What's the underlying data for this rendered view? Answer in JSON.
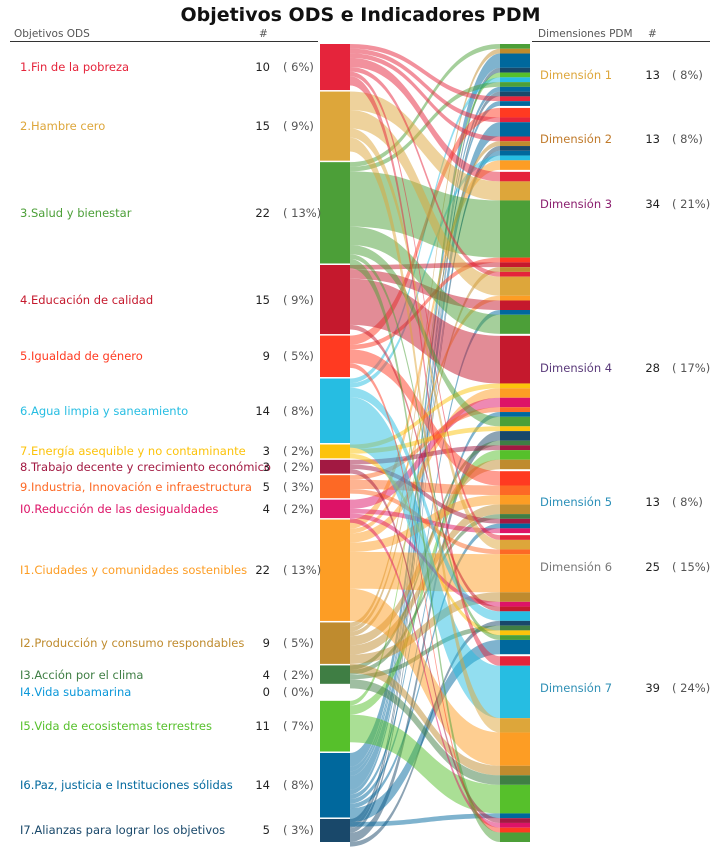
{
  "title": "Objetivos ODS e Indicadores PDM",
  "headers": {
    "left_label": "Objetivos ODS",
    "left_count": "#",
    "right_label": "Dimensiones PDM",
    "right_count": "#"
  },
  "chart_data": {
    "type": "sankey",
    "ods": [
      {
        "label": "1.Fin de la pobreza",
        "count": "10",
        "pct": "( 6%)",
        "value": 10,
        "color": "#E5243B"
      },
      {
        "label": "2.Hambre cero",
        "count": "15",
        "pct": "( 9%)",
        "value": 15,
        "color": "#DDA63A"
      },
      {
        "label": "3.Salud y bienestar",
        "count": "22",
        "pct": "( 13%)",
        "value": 22,
        "color": "#4C9F38"
      },
      {
        "label": "4.Educación de calidad",
        "count": "15",
        "pct": "( 9%)",
        "value": 15,
        "color": "#C5192D"
      },
      {
        "label": "5.Igualdad de género",
        "count": "9",
        "pct": "( 5%)",
        "value": 9,
        "color": "#FF3A21"
      },
      {
        "label": "6.Agua limpia y saneamiento",
        "count": "14",
        "pct": "( 8%)",
        "value": 14,
        "color": "#26BDE2"
      },
      {
        "label": "7.Energía asequible y no contaminante",
        "count": "3",
        "pct": "( 2%)",
        "value": 3,
        "color": "#FCC30B"
      },
      {
        "label": "8.Trabajo decente y crecimiento económico",
        "count": "3",
        "pct": "( 2%)",
        "value": 3,
        "color": "#A21942"
      },
      {
        "label": "9.Industria, Innovación e infraestructura",
        "count": "5",
        "pct": "( 3%)",
        "value": 5,
        "color": "#FD6925"
      },
      {
        "label": "I0.Reducción de las desigualdades",
        "count": "4",
        "pct": "( 2%)",
        "value": 4,
        "color": "#DD1367"
      },
      {
        "label": "I1.Ciudades y comunidades sostenibles",
        "count": "22",
        "pct": "( 13%)",
        "value": 22,
        "color": "#FD9D24"
      },
      {
        "label": "I2.Producción y consumo respondables",
        "count": "9",
        "pct": "( 5%)",
        "value": 9,
        "color": "#BF8B2E"
      },
      {
        "label": "I3.Acción por el clima",
        "count": "4",
        "pct": "( 2%)",
        "value": 4,
        "color": "#3F7E44"
      },
      {
        "label": "I4.Vida subamarina",
        "count": "0",
        "pct": "( 0%)",
        "value": 0,
        "color": "#0A97D9"
      },
      {
        "label": "I5.Vida de ecosistemas terrestres",
        "count": "11",
        "pct": "( 7%)",
        "value": 11,
        "color": "#56C02B"
      },
      {
        "label": "I6.Paz, justicia e Instituciones sólidas",
        "count": "14",
        "pct": "( 8%)",
        "value": 14,
        "color": "#00689D"
      },
      {
        "label": "I7.Alianzas para lograr los objetivos",
        "count": "5",
        "pct": "( 3%)",
        "value": 5,
        "color": "#19486A"
      }
    ],
    "dimensions": [
      {
        "label": "Dimensión 1",
        "count": "13",
        "pct": "( 8%)",
        "value": 13,
        "color": "#DDA63A"
      },
      {
        "label": "Dimensión 2",
        "count": "13",
        "pct": "( 8%)",
        "value": 13,
        "color": "#C07A2A"
      },
      {
        "label": "Dimensión 3",
        "count": "34",
        "pct": "( 21%)",
        "value": 34,
        "color": "#8B1E6E"
      },
      {
        "label": "Dimensión 4",
        "count": "28",
        "pct": "( 17%)",
        "value": 28,
        "color": "#5A3A7A"
      },
      {
        "label": "Dimensión 5",
        "count": "13",
        "pct": "( 8%)",
        "value": 13,
        "color": "#2A8FB8"
      },
      {
        "label": "Dimensión 6",
        "count": "25",
        "pct": "( 15%)",
        "value": 25,
        "color": "#777777"
      },
      {
        "label": "Dimensión 7",
        "count": "39",
        "pct": "( 24%)",
        "value": 39,
        "color": "#2E8FB5"
      }
    ],
    "links": [
      [
        2,
        0,
        1
      ],
      [
        11,
        0,
        1
      ],
      [
        15,
        0,
        3
      ],
      [
        16,
        0,
        1
      ],
      [
        14,
        0,
        1
      ],
      [
        5,
        0,
        1
      ],
      [
        2,
        0,
        1
      ],
      [
        15,
        0,
        1
      ],
      [
        16,
        0,
        1
      ],
      [
        0,
        0,
        1
      ],
      [
        15,
        0,
        1
      ],
      [
        4,
        1,
        2
      ],
      [
        0,
        1,
        1
      ],
      [
        15,
        1,
        3
      ],
      [
        0,
        1,
        1
      ],
      [
        11,
        1,
        1
      ],
      [
        16,
        1,
        1
      ],
      [
        15,
        1,
        1
      ],
      [
        5,
        1,
        1
      ],
      [
        10,
        1,
        2
      ],
      [
        0,
        2,
        2
      ],
      [
        1,
        2,
        4
      ],
      [
        2,
        2,
        12
      ],
      [
        4,
        2,
        1
      ],
      [
        3,
        2,
        1
      ],
      [
        11,
        2,
        1
      ],
      [
        0,
        2,
        1
      ],
      [
        1,
        2,
        4
      ],
      [
        10,
        2,
        1
      ],
      [
        3,
        2,
        2
      ],
      [
        15,
        2,
        1
      ],
      [
        2,
        2,
        4
      ],
      [
        3,
        3,
        10
      ],
      [
        6,
        3,
        1
      ],
      [
        10,
        3,
        2
      ],
      [
        9,
        3,
        2
      ],
      [
        8,
        3,
        1
      ],
      [
        15,
        3,
        1
      ],
      [
        2,
        3,
        2
      ],
      [
        6,
        3,
        1
      ],
      [
        16,
        3,
        2
      ],
      [
        12,
        3,
        1
      ],
      [
        7,
        3,
        1
      ],
      [
        14,
        3,
        2
      ],
      [
        11,
        3,
        2
      ],
      [
        4,
        4,
        3
      ],
      [
        8,
        4,
        2
      ],
      [
        10,
        4,
        2
      ],
      [
        11,
        4,
        2
      ],
      [
        12,
        4,
        1
      ],
      [
        7,
        4,
        1
      ],
      [
        15,
        4,
        1
      ],
      [
        9,
        4,
        1
      ],
      [
        0,
        5,
        1
      ],
      [
        1,
        5,
        2
      ],
      [
        8,
        5,
        1
      ],
      [
        10,
        5,
        8
      ],
      [
        11,
        5,
        2
      ],
      [
        9,
        5,
        1
      ],
      [
        3,
        5,
        1
      ],
      [
        5,
        5,
        2
      ],
      [
        16,
        5,
        1
      ],
      [
        12,
        5,
        1
      ],
      [
        6,
        5,
        1
      ],
      [
        2,
        5,
        1
      ],
      [
        15,
        5,
        3
      ],
      [
        0,
        6,
        2
      ],
      [
        5,
        6,
        11
      ],
      [
        1,
        6,
        3
      ],
      [
        10,
        6,
        7
      ],
      [
        11,
        6,
        2
      ],
      [
        12,
        6,
        2
      ],
      [
        14,
        6,
        6
      ],
      [
        15,
        6,
        1
      ],
      [
        7,
        6,
        1
      ],
      [
        9,
        6,
        1
      ],
      [
        13,
        6,
        0
      ],
      [
        4,
        6,
        1
      ],
      [
        2,
        6,
        2
      ]
    ]
  }
}
